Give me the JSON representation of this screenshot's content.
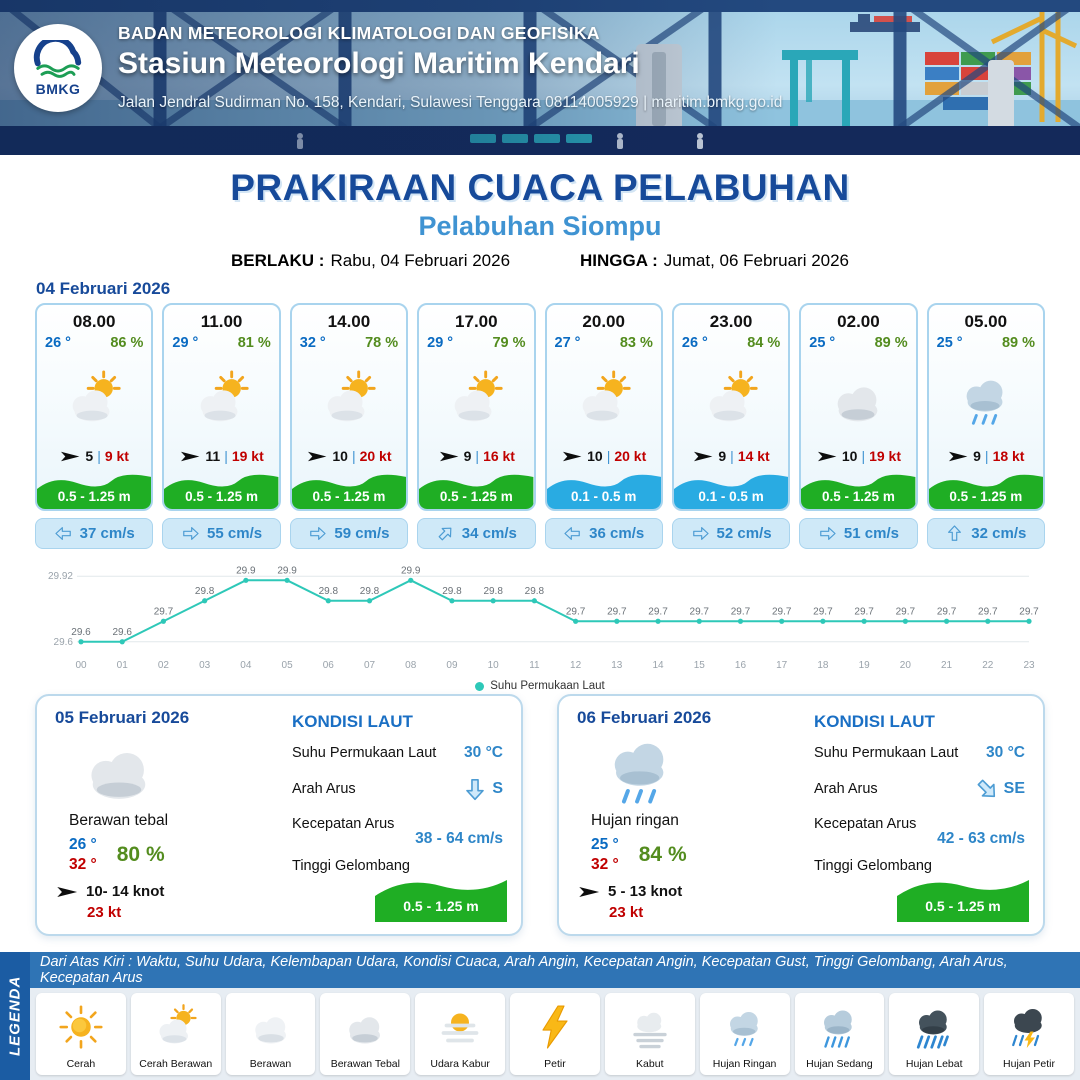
{
  "header": {
    "logo_text": "BMKG",
    "agency": "BADAN METEOROLOGI KLIMATOLOGI DAN GEOFISIKA",
    "station": "Stasiun Meteorologi Maritim Kendari",
    "address": "Jalan Jendral Sudirman No. 158, Kendari, Sulawesi Tenggara  08114005929 | maritim.bmkg.go.id"
  },
  "title": {
    "main": "PRAKIRAAN CUACA PELABUHAN",
    "port": "Pelabuhan Siompu",
    "berlaku_label": "BERLAKU :",
    "berlaku_value": "Rabu, 04 Februari 2026",
    "hingga_label": "HINGGA :",
    "hingga_value": "Jumat, 06 Februari 2026"
  },
  "icons": {
    "wind": "dart"
  },
  "forecast": {
    "date": "04 Februari 2026",
    "separator": "|",
    "cards": [
      {
        "time": "08.00",
        "temp": "26 °",
        "humidity": "86 %",
        "icon": "sun-cloud",
        "wind_speed": "5",
        "wind_gust": "9 kt",
        "wave": "0.5 - 1.25 m",
        "wave_level": "green",
        "current": "37 cm/s",
        "current_dir": "W"
      },
      {
        "time": "11.00",
        "temp": "29 °",
        "humidity": "81 %",
        "icon": "sun-cloud",
        "wind_speed": "11",
        "wind_gust": "19 kt",
        "wave": "0.5 - 1.25 m",
        "wave_level": "green",
        "current": "55 cm/s",
        "current_dir": "E"
      },
      {
        "time": "14.00",
        "temp": "32 °",
        "humidity": "78 %",
        "icon": "sun-cloud",
        "wind_speed": "10",
        "wind_gust": "20 kt",
        "wave": "0.5 - 1.25 m",
        "wave_level": "green",
        "current": "59 cm/s",
        "current_dir": "E"
      },
      {
        "time": "17.00",
        "temp": "29 °",
        "humidity": "79 %",
        "icon": "sun-cloud",
        "wind_speed": "9",
        "wind_gust": "16 kt",
        "wave": "0.5 - 1.25 m",
        "wave_level": "green",
        "current": "34 cm/s",
        "current_dir": "NE"
      },
      {
        "time": "20.00",
        "temp": "27 °",
        "humidity": "83 %",
        "icon": "sun-cloud",
        "wind_speed": "10",
        "wind_gust": "20 kt",
        "wave": "0.1 - 0.5 m",
        "wave_level": "blue",
        "current": "36 cm/s",
        "current_dir": "W"
      },
      {
        "time": "23.00",
        "temp": "26 °",
        "humidity": "84 %",
        "icon": "sun-cloud",
        "wind_speed": "9",
        "wind_gust": "14 kt",
        "wave": "0.1 - 0.5 m",
        "wave_level": "blue",
        "current": "52 cm/s",
        "current_dir": "E"
      },
      {
        "time": "02.00",
        "temp": "25 °",
        "humidity": "89 %",
        "icon": "cloud",
        "wind_speed": "10",
        "wind_gust": "19 kt",
        "wave": "0.5 - 1.25 m",
        "wave_level": "green",
        "current": "51 cm/s",
        "current_dir": "E"
      },
      {
        "time": "05.00",
        "temp": "25 °",
        "humidity": "89 %",
        "icon": "rain-light",
        "wind_speed": "9",
        "wind_gust": "18 kt",
        "wave": "0.5 - 1.25 m",
        "wave_level": "green",
        "current": "32 cm/s",
        "current_dir": "N"
      }
    ]
  },
  "chart_data": {
    "type": "line",
    "series_name": "Suhu Permukaan Laut",
    "x": [
      "00",
      "01",
      "02",
      "03",
      "04",
      "05",
      "06",
      "07",
      "08",
      "09",
      "10",
      "11",
      "12",
      "13",
      "14",
      "15",
      "16",
      "17",
      "18",
      "19",
      "20",
      "21",
      "22",
      "23"
    ],
    "values": [
      29.6,
      29.6,
      29.7,
      29.8,
      29.9,
      29.9,
      29.8,
      29.8,
      29.9,
      29.8,
      29.8,
      29.8,
      29.7,
      29.7,
      29.7,
      29.7,
      29.7,
      29.7,
      29.7,
      29.7,
      29.7,
      29.7,
      29.7,
      29.7
    ],
    "ylim": [
      29.6,
      29.92
    ],
    "y_ticks": [
      {
        "value": 29.92,
        "label": "29.92"
      },
      {
        "value": 29.6,
        "label": "29.6"
      }
    ],
    "line_color": "#2ec8b8",
    "grid": true,
    "legend_position": "bottom"
  },
  "outlook": [
    {
      "date": "05 Februari 2026",
      "icon": "cloud",
      "condition": "Berawan tebal",
      "temp_min": "26 °",
      "temp_max": "32 °",
      "humidity": "80 %",
      "wind": "10- 14 knot",
      "gust": "23 kt",
      "sea_title": "KONDISI LAUT",
      "sst_label": "Suhu Permukaan Laut",
      "sst": "30 °C",
      "current_dir_label": "Arah Arus",
      "current_dir": "S",
      "current_speed_label": "Kecepatan Arus",
      "current_speed": "38 - 64 cm/s",
      "wave_label": "Tinggi Gelombang",
      "wave": "0.5 - 1.25 m"
    },
    {
      "date": "06 Februari 2026",
      "icon": "rain-light",
      "condition": "Hujan ringan",
      "temp_min": "25 °",
      "temp_max": "32 °",
      "humidity": "84 %",
      "wind": "5 - 13 knot",
      "gust": "23 kt",
      "sea_title": "KONDISI LAUT",
      "sst_label": "Suhu Permukaan Laut",
      "sst": "30 °C",
      "current_dir_label": "Arah Arus",
      "current_dir": "SE",
      "current_speed_label": "Kecepatan Arus",
      "current_speed": "42 - 63 cm/s",
      "wave_label": "Tinggi Gelombang",
      "wave": "0.5 - 1.25 m"
    }
  ],
  "legend": {
    "vertical_label": "LEGENDA",
    "description": "Dari Atas Kiri : Waktu, Suhu Udara, Kelembapan Udara, Kondisi Cuaca, Arah Angin, Kecepatan Angin, Kecepatan Gust, Tinggi Gelombang, Arah Arus, Kecepatan Arus",
    "items": [
      {
        "label": "Cerah",
        "icon": "sun"
      },
      {
        "label": "Cerah Berawan",
        "icon": "sun-cloud"
      },
      {
        "label": "Berawan",
        "icon": "cloud-light"
      },
      {
        "label": "Berawan Tebal",
        "icon": "cloud"
      },
      {
        "label": "Udara Kabur",
        "icon": "haze"
      },
      {
        "label": "Petir",
        "icon": "lightning"
      },
      {
        "label": "Kabut",
        "icon": "fog"
      },
      {
        "label": "Hujan Ringan",
        "icon": "rain-light"
      },
      {
        "label": "Hujan Sedang",
        "icon": "rain"
      },
      {
        "label": "Hujan Lebat",
        "icon": "rain-heavy"
      },
      {
        "label": "Hujan Petir",
        "icon": "storm"
      }
    ]
  },
  "colors": {
    "accent_blue": "#174a9a",
    "port_blue": "#3f93d2",
    "temp_blue": "#0a6bc2",
    "humidity_green": "#538c1e",
    "gust_red": "#c00000",
    "wave_green": "#1fae24",
    "wave_blue": "#29abe2",
    "chart_teal": "#2ec8b8",
    "legend_bar_blue": "#2f74b5"
  }
}
